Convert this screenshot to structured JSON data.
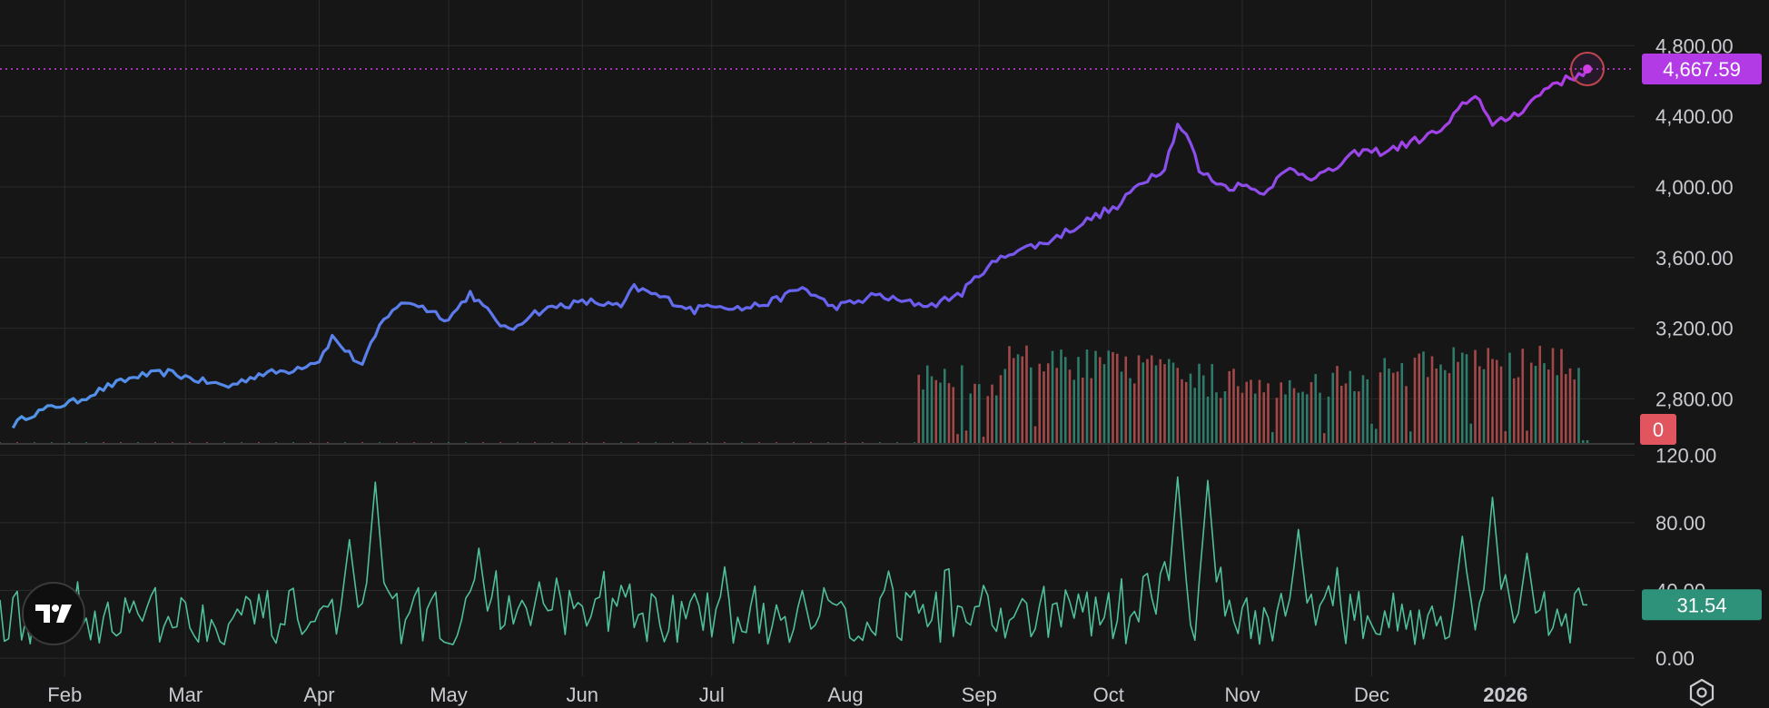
{
  "chart_data": [
    {
      "type": "line",
      "title": "",
      "y_ticks": [
        "4,800.00",
        "4,400.00",
        "4,000.00",
        "3,600.00",
        "3,200.00",
        "2,800.00"
      ],
      "y_tick_values": [
        4800,
        4400,
        4000,
        3600,
        3200,
        2800
      ],
      "ylim": [
        2540,
        4935
      ],
      "last_value": 4667.59,
      "last_label": "4,667.59",
      "price_anchors": [
        [
          "2025-01-20",
          2650
        ],
        [
          "2025-01-23",
          2700
        ],
        [
          "2025-01-28",
          2745
        ],
        [
          "2025-02-04",
          2790
        ],
        [
          "2025-02-11",
          2870
        ],
        [
          "2025-02-18",
          2930
        ],
        [
          "2025-02-25",
          2950
        ],
        [
          "2025-03-04",
          2905
        ],
        [
          "2025-03-11",
          2870
        ],
        [
          "2025-03-18",
          2940
        ],
        [
          "2025-03-25",
          2960
        ],
        [
          "2025-04-01",
          3020
        ],
        [
          "2025-04-04",
          3150
        ],
        [
          "2025-04-09",
          3030
        ],
        [
          "2025-04-11",
          2990
        ],
        [
          "2025-04-15",
          3210
        ],
        [
          "2025-04-18",
          3310
        ],
        [
          "2025-04-22",
          3350
        ],
        [
          "2025-04-25",
          3320
        ],
        [
          "2025-05-01",
          3250
        ],
        [
          "2025-05-06",
          3400
        ],
        [
          "2025-05-09",
          3320
        ],
        [
          "2025-05-15",
          3180
        ],
        [
          "2025-05-20",
          3280
        ],
        [
          "2025-05-27",
          3330
        ],
        [
          "2025-06-03",
          3350
        ],
        [
          "2025-06-10",
          3320
        ],
        [
          "2025-06-13",
          3430
        ],
        [
          "2025-06-20",
          3370
        ],
        [
          "2025-06-27",
          3300
        ],
        [
          "2025-07-01",
          3340
        ],
        [
          "2025-07-08",
          3310
        ],
        [
          "2025-07-15",
          3350
        ],
        [
          "2025-07-22",
          3430
        ],
        [
          "2025-07-29",
          3320
        ],
        [
          "2025-08-04",
          3350
        ],
        [
          "2025-08-08",
          3390
        ],
        [
          "2025-08-14",
          3350
        ],
        [
          "2025-08-21",
          3330
        ],
        [
          "2025-08-28",
          3400
        ],
        [
          "2025-09-02",
          3530
        ],
        [
          "2025-09-09",
          3640
        ],
        [
          "2025-09-16",
          3680
        ],
        [
          "2025-09-23",
          3770
        ],
        [
          "2025-09-30",
          3860
        ],
        [
          "2025-10-03",
          3880
        ],
        [
          "2025-10-08",
          4020
        ],
        [
          "2025-10-14",
          4110
        ],
        [
          "2025-10-17",
          4360
        ],
        [
          "2025-10-20",
          4250
        ],
        [
          "2025-10-22",
          4090
        ],
        [
          "2025-10-28",
          4000
        ],
        [
          "2025-11-03",
          4010
        ],
        [
          "2025-11-05",
          3960
        ],
        [
          "2025-11-12",
          4100
        ],
        [
          "2025-11-17",
          4060
        ],
        [
          "2025-11-21",
          4080
        ],
        [
          "2025-11-28",
          4200
        ],
        [
          "2025-12-04",
          4200
        ],
        [
          "2025-12-11",
          4260
        ],
        [
          "2025-12-18",
          4330
        ],
        [
          "2025-12-23",
          4490
        ],
        [
          "2025-12-26",
          4510
        ],
        [
          "2025-12-29",
          4340
        ],
        [
          "2026-01-05",
          4440
        ],
        [
          "2026-01-12",
          4590
        ],
        [
          "2026-01-16",
          4610
        ],
        [
          "2026-01-20",
          4667.59
        ]
      ],
      "line_colors": {
        "start": "#4f97e8",
        "mid": "#6a5ef0",
        "end": "#b23be6"
      },
      "last_marker_color": "#d13ee6"
    },
    {
      "type": "bar",
      "title": "",
      "x_start": "2025-08-18",
      "x_end": "2026-01-20",
      "value_label": "0",
      "up_color": "#2f7a69",
      "down_color": "#a34848"
    },
    {
      "type": "line",
      "title": "",
      "y_ticks": [
        "120.00",
        "80.00",
        "40.00",
        "0.00"
      ],
      "y_tick_values": [
        120,
        80,
        40,
        0
      ],
      "ylim": [
        -8,
        125
      ],
      "last_value": 31.54,
      "last_label": "31.54",
      "line_color": "#4fbf9b",
      "osc_anchors": [
        [
          "2025-04-08",
          70
        ],
        [
          "2025-04-14",
          104
        ],
        [
          "2025-05-08",
          65
        ],
        [
          "2025-05-22",
          45
        ],
        [
          "2025-06-10",
          43
        ],
        [
          "2025-07-22",
          40
        ],
        [
          "2025-08-28",
          30
        ],
        [
          "2025-09-02",
          43
        ],
        [
          "2025-10-10",
          50
        ],
        [
          "2025-10-14",
          57
        ],
        [
          "2025-10-17",
          107
        ],
        [
          "2025-10-24",
          105
        ],
        [
          "2025-11-14",
          76
        ],
        [
          "2025-12-22",
          72
        ],
        [
          "2025-12-29",
          95
        ],
        [
          "2026-01-06",
          62
        ],
        [
          "2026-01-20",
          31.54
        ]
      ]
    }
  ],
  "x_axis": {
    "labels": [
      "Feb",
      "Mar",
      "Apr",
      "May",
      "Jun",
      "Jul",
      "Aug",
      "Sep",
      "Oct",
      "Nov",
      "Dec",
      "2026"
    ],
    "dates": [
      "2025-02-01",
      "2025-03-01",
      "2025-04-01",
      "2025-05-01",
      "2025-06-01",
      "2025-07-01",
      "2025-08-01",
      "2025-09-01",
      "2025-10-01",
      "2025-11-01",
      "2025-12-01",
      "2026-01-01"
    ],
    "bold_label": "2026",
    "start": "2025-01-17",
    "end": "2026-01-20"
  },
  "colors": {
    "background": "#161616",
    "grid": "#2a2a2a",
    "price_badge": "#b23be6",
    "volume_badge": "#e0555e",
    "osc_badge": "#2e9179"
  },
  "icons": {
    "logo": "tradingview-logo-icon",
    "settings": "settings-icon"
  }
}
